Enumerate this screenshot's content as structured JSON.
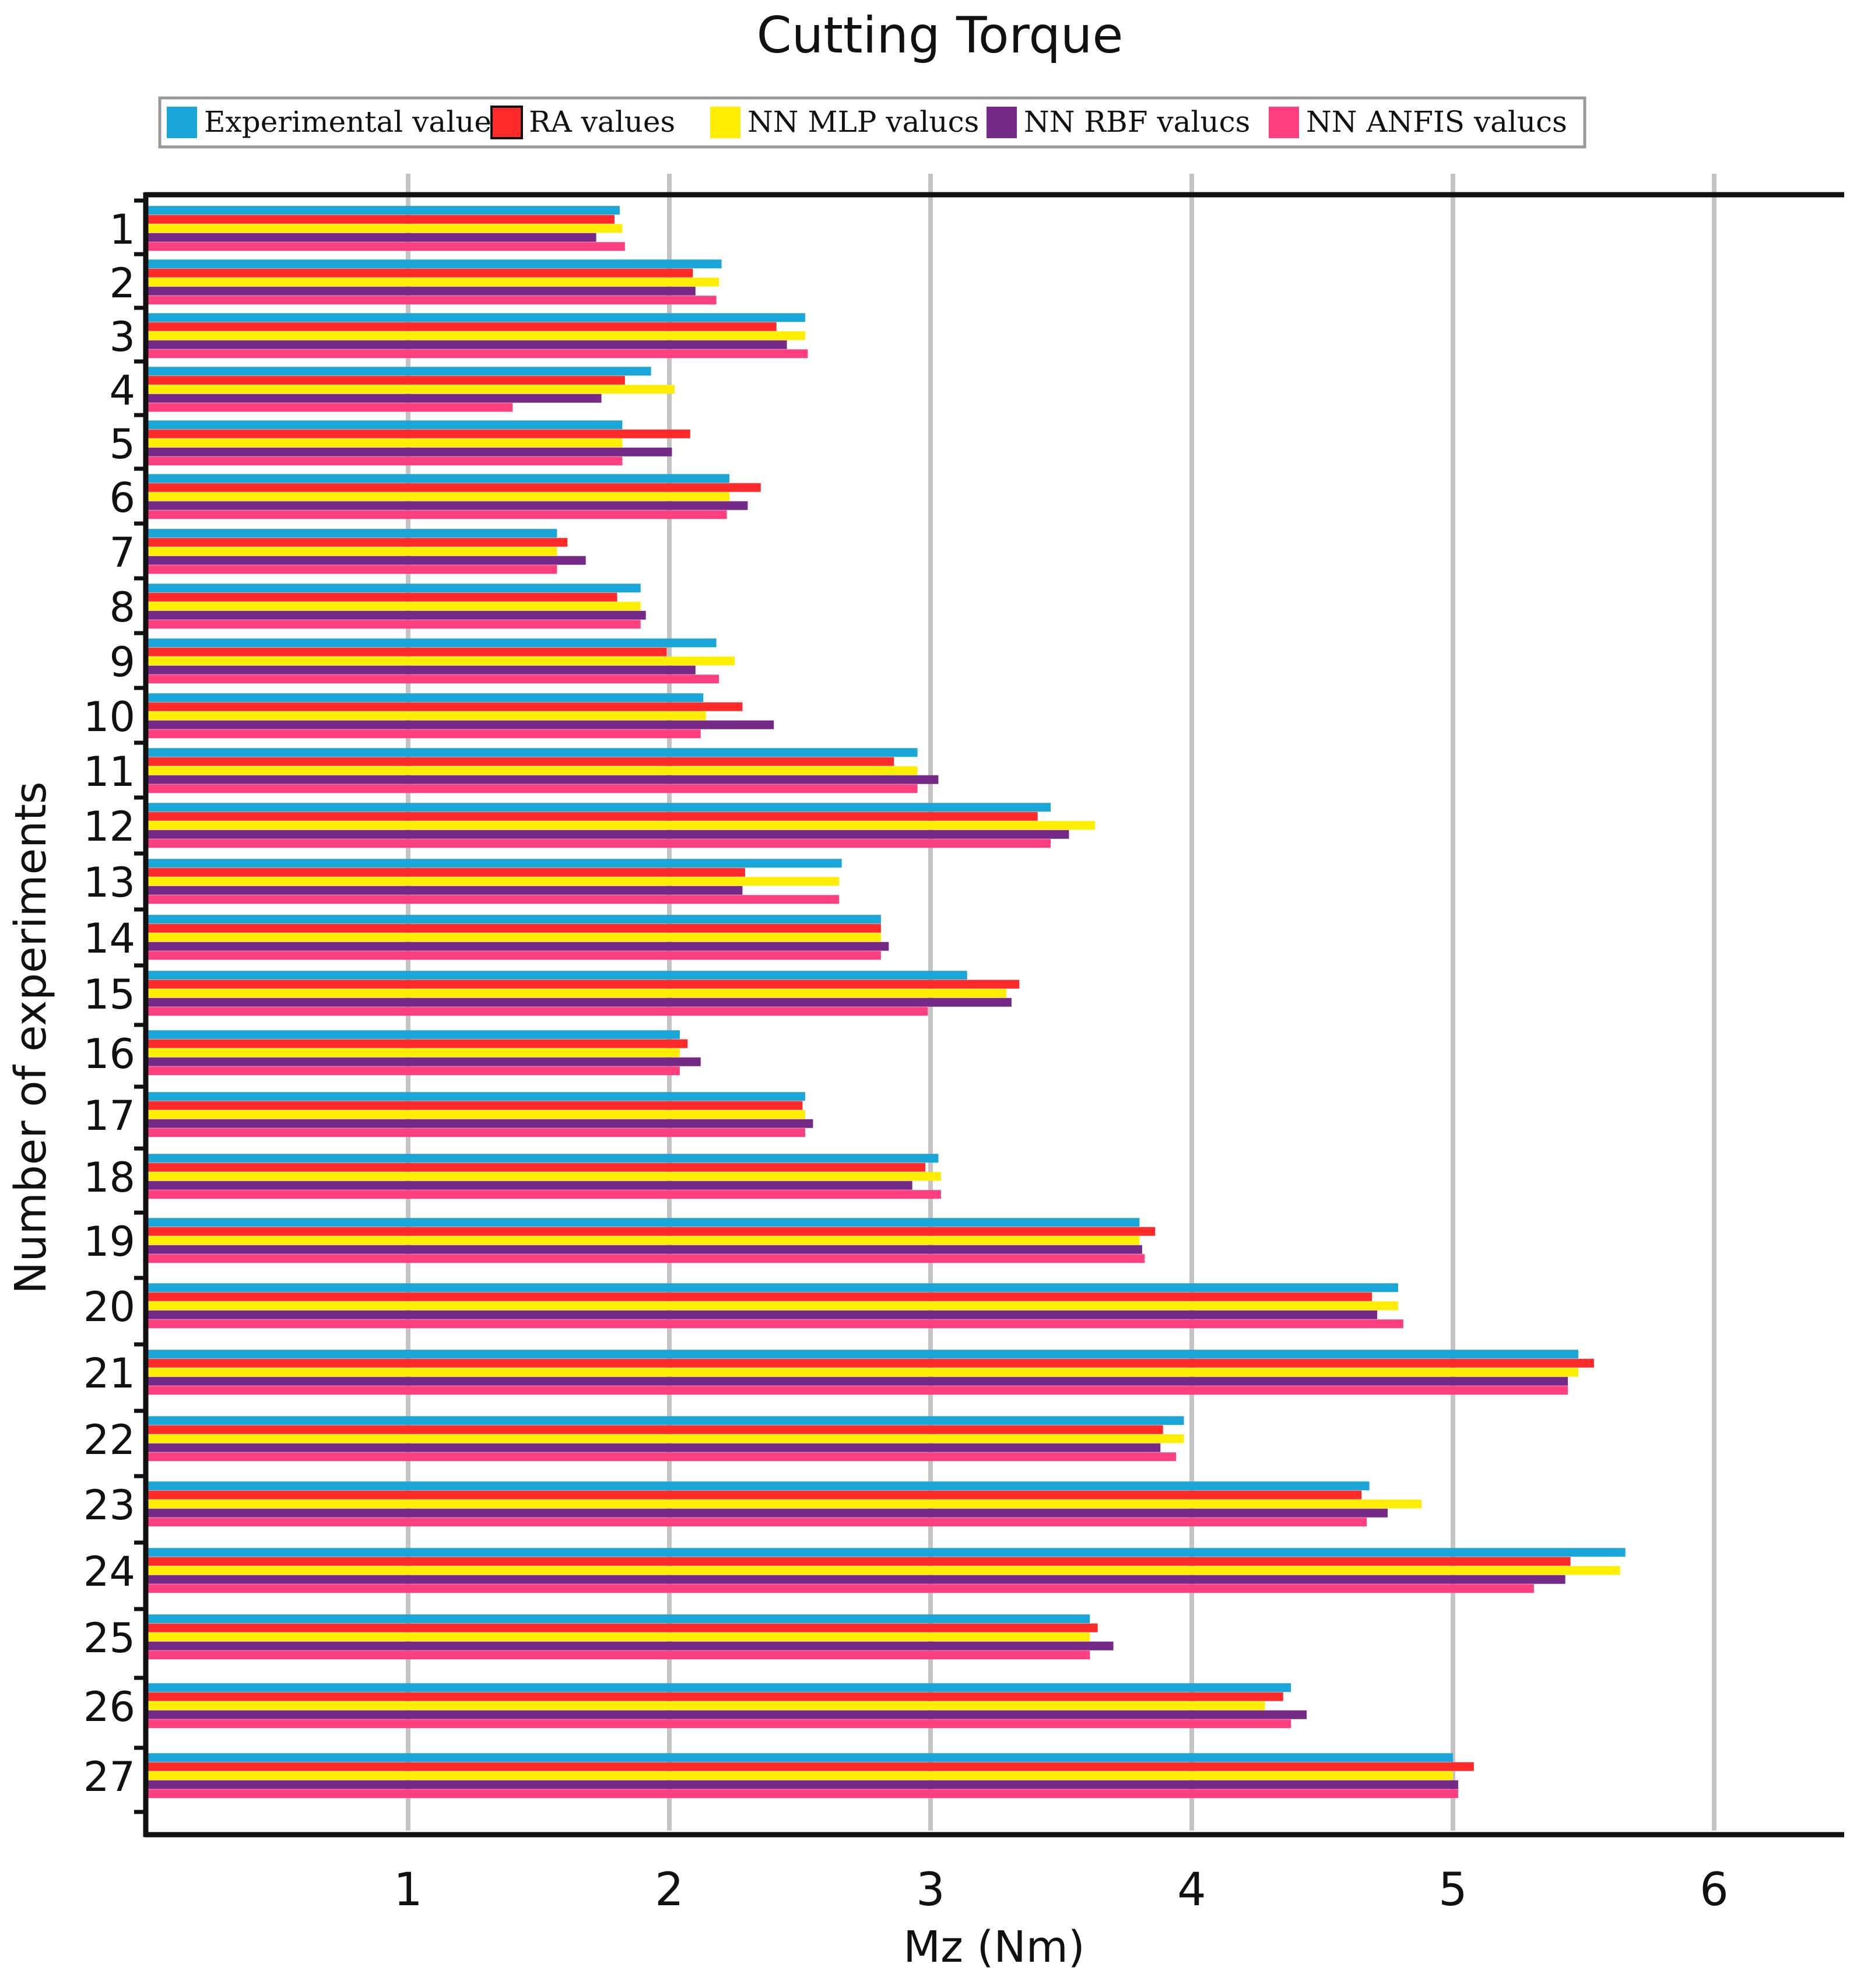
{
  "colors": {
    "experimental": "#1aa6d8",
    "ra": "#ff2a2a",
    "mlp": "#ffee00",
    "rbf": "#742a86",
    "anfis": "#ff3f7e",
    "grid": "#c4c4c4",
    "axis": "#111111",
    "legend_border": "#999999"
  },
  "chart_data": {
    "type": "bar",
    "orientation": "horizontal",
    "title": "Cutting Torque",
    "xlabel": "Mz (Nm)",
    "ylabel": "Number of experiments",
    "xlim": [
      0,
      6.45
    ],
    "xticks": [
      1,
      2,
      3,
      4,
      5,
      6
    ],
    "grid": "vertical",
    "legend_position": "top",
    "categories": [
      "1",
      "2",
      "3",
      "4",
      "5",
      "6",
      "7",
      "8",
      "9",
      "10",
      "11",
      "12",
      "13",
      "14",
      "15",
      "16",
      "17",
      "18",
      "19",
      "20",
      "21",
      "22",
      "23",
      "24",
      "25",
      "26",
      "27"
    ],
    "series": [
      {
        "name": "Experimental values",
        "color_key": "experimental",
        "values": [
          1.81,
          2.2,
          2.52,
          1.93,
          1.82,
          2.23,
          1.57,
          1.89,
          2.18,
          2.13,
          2.95,
          3.46,
          2.66,
          2.81,
          3.14,
          2.04,
          2.52,
          3.03,
          3.8,
          4.79,
          5.48,
          3.97,
          4.68,
          5.66,
          3.61,
          4.38,
          5.0
        ]
      },
      {
        "name": "RA values",
        "color_key": "ra",
        "values": [
          1.79,
          2.09,
          2.41,
          1.83,
          2.08,
          2.35,
          1.61,
          1.8,
          1.99,
          2.28,
          2.86,
          3.41,
          2.29,
          2.81,
          3.34,
          2.07,
          2.51,
          2.98,
          3.86,
          4.69,
          5.54,
          3.89,
          4.65,
          5.45,
          3.64,
          4.35,
          5.08
        ]
      },
      {
        "name": "NN MLP valucs",
        "color_key": "mlp",
        "values": [
          1.82,
          2.19,
          2.52,
          2.02,
          1.82,
          2.23,
          1.57,
          1.89,
          2.25,
          2.14,
          2.95,
          3.63,
          2.65,
          2.81,
          3.29,
          2.04,
          2.52,
          3.04,
          3.8,
          4.79,
          5.48,
          3.97,
          4.88,
          5.64,
          3.61,
          4.28,
          5.0
        ]
      },
      {
        "name": "NN RBF valucs",
        "color_key": "rbf",
        "values": [
          1.72,
          2.1,
          2.45,
          1.74,
          2.01,
          2.3,
          1.68,
          1.91,
          2.1,
          2.4,
          3.03,
          3.53,
          2.28,
          2.84,
          3.31,
          2.12,
          2.55,
          2.93,
          3.81,
          4.71,
          5.44,
          3.88,
          4.75,
          5.43,
          3.7,
          4.44,
          5.02
        ]
      },
      {
        "name": "NN ANFIS valucs",
        "color_key": "anfis",
        "values": [
          1.83,
          2.18,
          2.53,
          1.4,
          1.82,
          2.22,
          1.57,
          1.89,
          2.19,
          2.12,
          2.95,
          3.46,
          2.65,
          2.81,
          2.99,
          2.04,
          2.52,
          3.04,
          3.82,
          4.81,
          5.44,
          3.94,
          4.67,
          5.31,
          3.61,
          4.38,
          5.02
        ]
      }
    ]
  }
}
